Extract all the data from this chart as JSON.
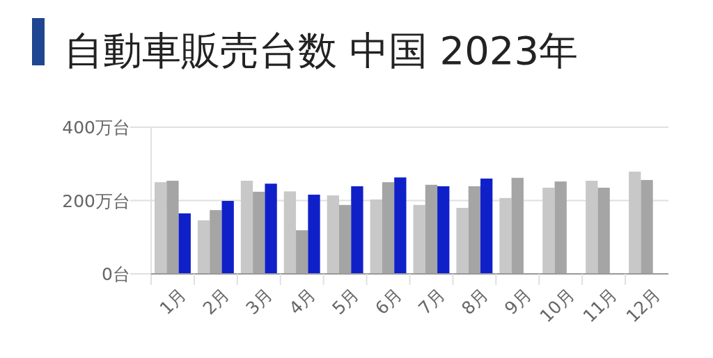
{
  "chart_data": {
    "type": "bar",
    "title": "自動車販売台数 中国 2023年",
    "categories": [
      "1月",
      "2月",
      "3月",
      "4月",
      "5月",
      "6月",
      "7月",
      "8月",
      "9月",
      "10月",
      "11月",
      "12月"
    ],
    "series": [
      {
        "color": "#c8c8c8",
        "values": [
          250,
          146,
          254,
          225,
          214,
          203,
          188,
          180,
          207,
          235,
          254,
          279
        ]
      },
      {
        "color": "#a5a5a5",
        "values": [
          254,
          174,
          224,
          119,
          188,
          250,
          243,
          239,
          262,
          252,
          235,
          256
        ]
      },
      {
        "color": "#1020c8",
        "values": [
          165,
          199,
          246,
          216,
          239,
          263,
          239,
          260,
          null,
          null,
          null,
          null
        ]
      }
    ],
    "ylim": [
      0,
      400
    ],
    "yticks": [
      {
        "value": 0,
        "label": "0台"
      },
      {
        "value": 200,
        "label": "200万台"
      },
      {
        "value": 400,
        "label": "400万台"
      }
    ],
    "grid": "y"
  }
}
